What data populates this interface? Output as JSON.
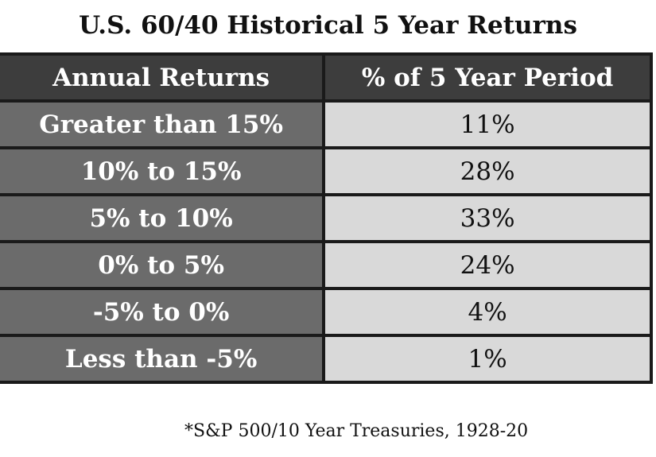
{
  "title": "U.S. 60/40 Historical 5 Year Returns",
  "table": {
    "header": [
      "Annual Returns",
      "% of 5 Year Period"
    ],
    "rows": [
      [
        "Greater than 15%",
        "11%"
      ],
      [
        "10% to 15%",
        "28%"
      ],
      [
        "5% to 10%",
        "33%"
      ],
      [
        "0% to 5%",
        "24%"
      ],
      [
        "-5% to 0%",
        "4%"
      ],
      [
        "Less than -5%",
        "1%"
      ]
    ]
  },
  "footnote": "*S&P 500/10 Year Treasuries, 1928-20"
}
